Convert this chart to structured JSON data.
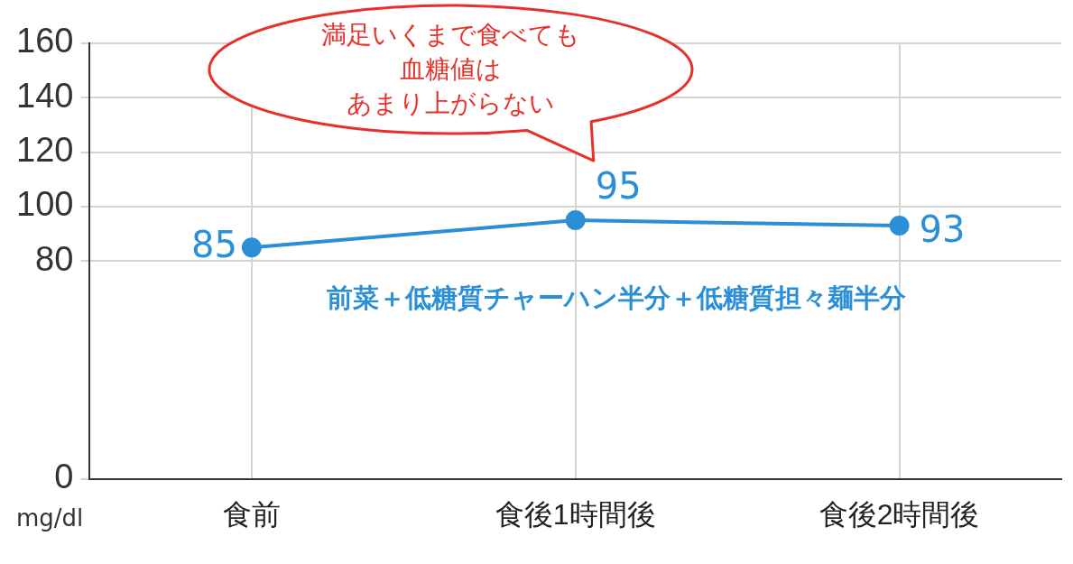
{
  "chart_data": {
    "type": "line",
    "categories": [
      "食前",
      "食後1時間後",
      "食後2時間後"
    ],
    "series": [
      {
        "color": "#2a8fd6",
        "values": [
          85,
          95,
          93
        ]
      }
    ],
    "ylim": [
      0,
      160
    ],
    "yticks": [
      0,
      80,
      100,
      120,
      140,
      160
    ],
    "ylabel": "mg/dl",
    "grid": true,
    "legend": false,
    "marker": "circle",
    "line_style": "solid",
    "data_labels": true,
    "annotations": [
      "満足いくまで食べても",
      "血糖値は",
      "あまり上がらない",
      "前菜＋低糖質チャーハン半分＋低糖質担々麺半分"
    ]
  }
}
